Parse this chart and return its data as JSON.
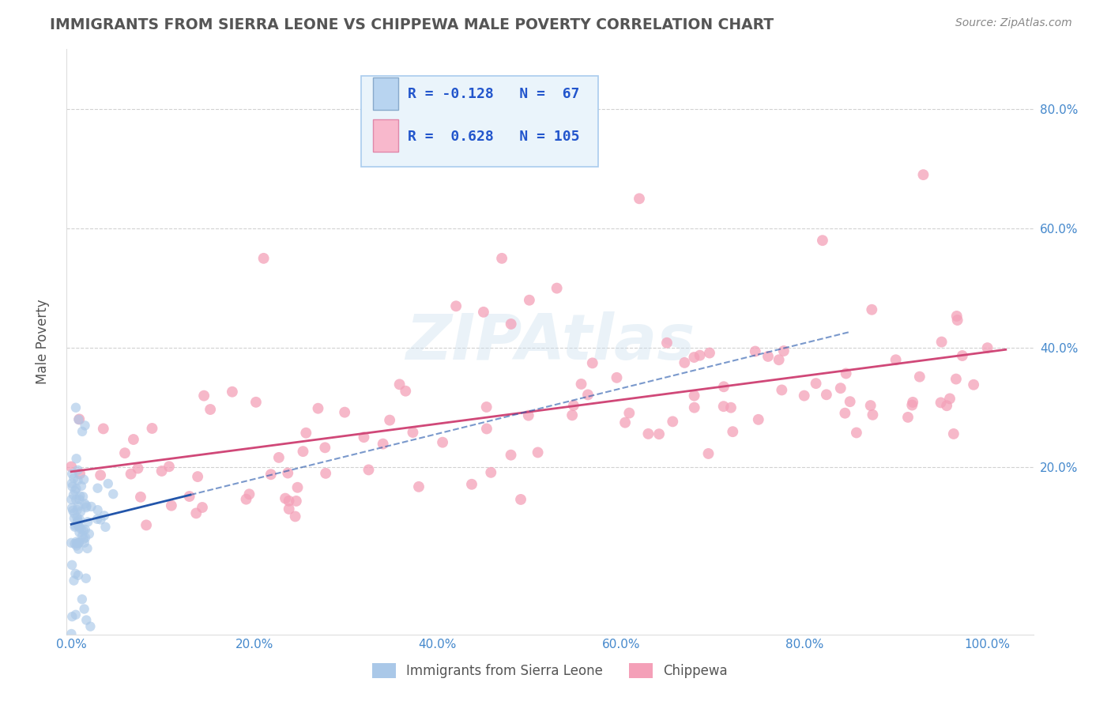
{
  "title": "IMMIGRANTS FROM SIERRA LEONE VS CHIPPEWA MALE POVERTY CORRELATION CHART",
  "source": "Source: ZipAtlas.com",
  "ylabel_label": "Male Poverty",
  "series1_label": "Immigrants from Sierra Leone",
  "series1_color": "#aac8e8",
  "series1_edge_color": "#88aacc",
  "series1_line_color": "#2255aa",
  "series1_R": -0.128,
  "series1_N": 67,
  "series2_label": "Chippewa",
  "series2_color": "#f4a0b8",
  "series2_edge_color": "#e080a0",
  "series2_line_color": "#d04878",
  "series2_R": 0.628,
  "series2_N": 105,
  "bg_color": "#ffffff",
  "title_color": "#555555",
  "source_color": "#888888",
  "axis_label_color": "#555555",
  "tick_color": "#4488cc",
  "grid_color": "#cccccc",
  "legend_bg": "#eaf4fb",
  "legend_border": "#aaccee",
  "legend_text_color": "#2255cc",
  "watermark_color": "#cce0ee",
  "watermark_alpha": 0.4
}
